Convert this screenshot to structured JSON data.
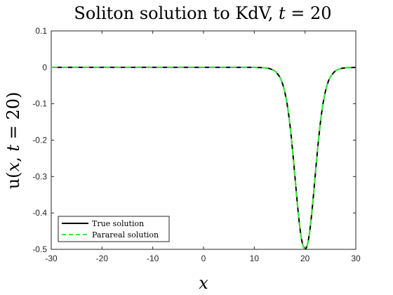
{
  "chart_data": {
    "type": "line",
    "title_prefix": "Soliton solution to KdV, ",
    "title_var": "t",
    "title_suffix": " = 20",
    "xlabel": "x",
    "ylabel_prefix": "u(",
    "ylabel_var1": "x",
    "ylabel_mid": ", ",
    "ylabel_var2": "t",
    "ylabel_suffix": " = 20)",
    "xlim": [
      -30,
      30
    ],
    "ylim": [
      -0.5,
      0.1
    ],
    "xticks": [
      -30,
      -20,
      -10,
      0,
      10,
      20,
      30
    ],
    "xtick_labels": [
      "-30",
      "-20",
      "-10",
      "0",
      "10",
      "20",
      "30"
    ],
    "yticks": [
      0.1,
      0,
      -0.1,
      -0.2,
      -0.3,
      -0.4,
      -0.5
    ],
    "ytick_labels": [
      "0.1",
      "0",
      "-0.1",
      "-0.2",
      "-0.3",
      "-0.4",
      "-0.5"
    ],
    "grid": false,
    "legend_position": "bottom-left",
    "x": [
      -30,
      -25,
      -20,
      -15,
      -10,
      -5,
      0,
      5,
      10,
      12,
      13,
      14,
      15,
      15.5,
      16,
      16.5,
      17,
      17.5,
      18,
      18.5,
      19,
      19.5,
      20,
      20.5,
      21,
      21.5,
      22,
      22.5,
      23,
      23.5,
      24,
      24.5,
      25,
      26,
      27,
      28,
      29,
      30
    ],
    "series": [
      {
        "name": "True solution",
        "color": "#000000",
        "style": "solid",
        "values": [
          0,
          0,
          0,
          0,
          0,
          0,
          0,
          0,
          0,
          -0.0013,
          -0.0036,
          -0.0098,
          -0.0263,
          -0.0423,
          -0.067,
          -0.1036,
          -0.155,
          -0.2214,
          -0.2984,
          -0.3761,
          -0.442,
          -0.4851,
          -0.5,
          -0.4851,
          -0.442,
          -0.3761,
          -0.2984,
          -0.2214,
          -0.155,
          -0.1036,
          -0.067,
          -0.0423,
          -0.0263,
          -0.0098,
          -0.0036,
          -0.0013,
          -0.0005,
          -0.0002
        ]
      },
      {
        "name": "Parareal solution",
        "color": "#33ee33",
        "style": "dashed",
        "values": [
          0,
          0,
          0,
          0,
          0,
          0,
          0,
          0,
          0,
          -0.0013,
          -0.0036,
          -0.0098,
          -0.0263,
          -0.0423,
          -0.067,
          -0.1036,
          -0.155,
          -0.2214,
          -0.2984,
          -0.3761,
          -0.442,
          -0.4851,
          -0.5,
          -0.4851,
          -0.442,
          -0.3761,
          -0.2984,
          -0.2214,
          -0.155,
          -0.1036,
          -0.067,
          -0.0423,
          -0.0263,
          -0.0098,
          -0.0036,
          -0.0013,
          -0.0005,
          -0.0002
        ]
      }
    ]
  }
}
